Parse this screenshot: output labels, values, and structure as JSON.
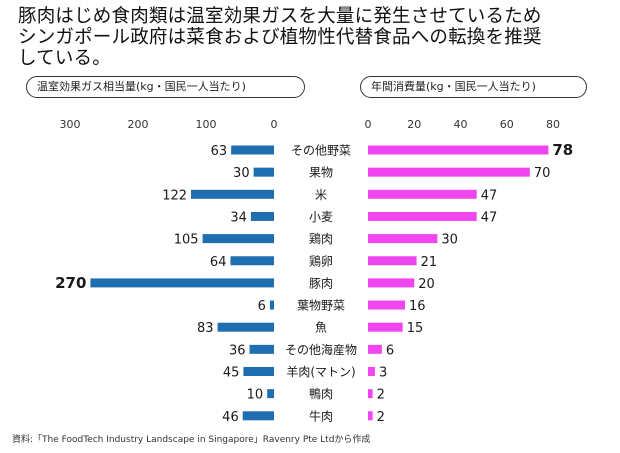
{
  "title_lines": [
    "豚肉はじめ食肉類は温室効果ガスを大量に発生させているため",
    "シンガポール政府は菜食および植物性代替食品への転換を推奨",
    "している。"
  ],
  "source": "資料:「The FoodTech Industry Landscape in Singapore」Ravenry Pte Ltdから作成",
  "colors": {
    "left_bar": "#1f6eb0",
    "right_bar": "#f046f0"
  },
  "chart_data": {
    "type": "bar",
    "orientation": "horizontal-butterfly",
    "categories": [
      "その他野菜",
      "果物",
      "米",
      "小麦",
      "鶏肉",
      "鶏卵",
      "豚肉",
      "葉物野菜",
      "魚",
      "その他海産物",
      "羊肉(マトン)",
      "鴨肉",
      "牛肉"
    ],
    "series": [
      {
        "name": "温室効果ガス相当量(kg・国民一人当たり)",
        "values": [
          63,
          30,
          122,
          34,
          105,
          64,
          270,
          6,
          83,
          36,
          45,
          10,
          46
        ],
        "ticks": [
          "300",
          "200",
          "100",
          "0"
        ],
        "xlim": [
          0,
          300
        ],
        "direction": "leftward",
        "highlight_index": 6
      },
      {
        "name": "年間消費量(kg・国民一人当たり)",
        "values": [
          78,
          70,
          47,
          47,
          30,
          21,
          20,
          16,
          15,
          6,
          3,
          2,
          2
        ],
        "ticks": [
          "0",
          "20",
          "40",
          "60",
          "80"
        ],
        "xlim": [
          0,
          80
        ],
        "direction": "rightward",
        "highlight_index": 0
      }
    ]
  }
}
